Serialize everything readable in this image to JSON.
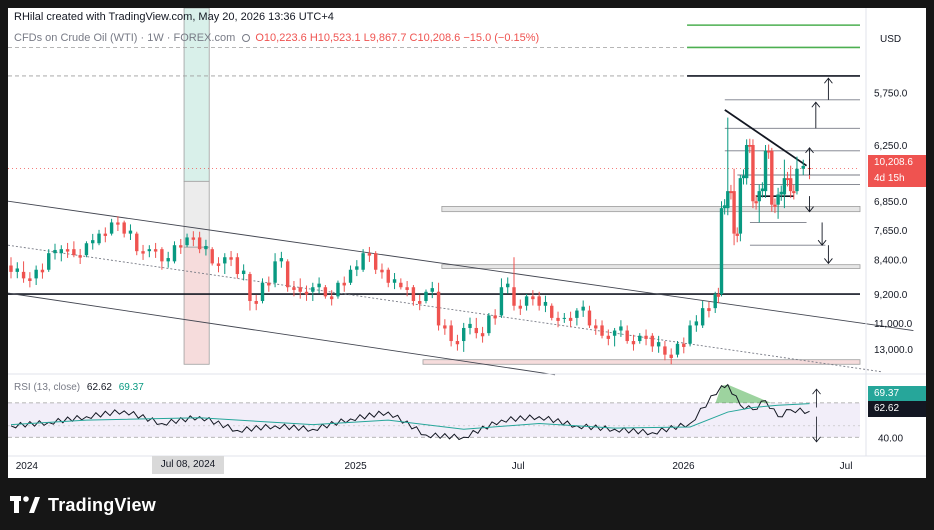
{
  "header": {
    "attribution": "RHilal created with TradingView.com, May 20, 2026 13:36 UTC+4",
    "symbol": "CFDs on Crude Oil (WTI) · 1W · FOREX.com",
    "open": "O10,223.6",
    "high": "H10,523.1",
    "low": "L9,867.7",
    "close": "C10,208.6",
    "change": "−15.0 (−0.15%)",
    "currency": "USD"
  },
  "price_labels": {
    "last_price": "10,208.6",
    "countdown": "4d 15h"
  },
  "rsi": {
    "label": "RSI (13, close)",
    "value": "62.62",
    "signal": "69.37",
    "level_label": "40.00"
  },
  "x_axis": {
    "labels": [
      "2024",
      "Jul 08, 2024",
      "2025",
      "Jul",
      "2026",
      "Jul"
    ],
    "highlighted": "Jul 08, 2024"
  },
  "y_axis": {
    "ticks": [
      "13,000.0",
      "11,000.0",
      "9,200.0",
      "8,400.0",
      "7,650.0",
      "6,850.0",
      "6,250.0",
      "5,750.0"
    ]
  },
  "brand": {
    "name": "TradingView"
  },
  "colors": {
    "up": "#089981",
    "down": "#ef5350",
    "rsi_line": "#131722",
    "rsi_signal": "#26a69a",
    "rsi_band": "#7e57c2"
  },
  "chart_data": [
    {
      "type": "candlestick",
      "title": "CFDs on Crude Oil (WTI) · 1W · FOREX.com",
      "ylabel": "USD",
      "x_range": [
        "2023-12-11",
        "2026-09-28"
      ],
      "ylim": [
        5450,
        17000
      ],
      "y_scale": "log",
      "y_ticks": [
        5750,
        6250,
        6850,
        7650,
        8400,
        9200,
        11000,
        13000
      ],
      "last_close": 10208.6,
      "levels": [
        {
          "price": 16100,
          "color": "#4caf50",
          "x_from": "2026-01-05"
        },
        {
          "price": 15000,
          "color": "#4caf50",
          "x_from": "2026-01-05",
          "style": "dashed",
          "x_start": "2023-12-11"
        },
        {
          "price": 13700,
          "color": "#131722",
          "x_from": "2026-01-05",
          "style": "dashed",
          "x_start": "2023-12-11"
        },
        {
          "price": 12700,
          "color": "#787b86",
          "x_from": "2026-02-16"
        },
        {
          "price": 11600,
          "color": "#787b86",
          "x_from": "2026-02-16"
        },
        {
          "price": 10800,
          "color": "#787b86",
          "x_from": "2026-02-16"
        },
        {
          "price": 10000,
          "color": "#787b86",
          "x_from": "2026-03-02"
        },
        {
          "price": 9700,
          "color": "#787b86",
          "x_from": "2026-03-16"
        },
        {
          "price": 9350,
          "color": "#131722",
          "x_from": "2026-03-23",
          "x_to": "2026-05-04"
        },
        {
          "price": 8600,
          "color": "#787b86",
          "x_from": "2026-03-16",
          "x_to": "2026-05-18"
        },
        {
          "price": 8000,
          "color": "#787b86",
          "x_from": "2026-03-16",
          "x_to": "2026-06-08"
        },
        {
          "price": 6850,
          "color": "#131722",
          "x_from": "2023-12-11"
        }
      ],
      "zones": [
        {
          "x_from": "2024-06-24",
          "x_to": "2024-07-22",
          "top": 17000,
          "bottom": 9800,
          "color": "#d9f0ea"
        },
        {
          "x_from": "2024-06-24",
          "x_to": "2024-07-22",
          "top": 9800,
          "bottom": 7950,
          "color": "#ececec"
        },
        {
          "x_from": "2024-06-24",
          "x_to": "2024-07-22",
          "top": 7950,
          "bottom": 5480,
          "color": "#f6dcdc"
        },
        {
          "x_from": "2025-04-07",
          "x_to": "2026-08-10",
          "top": 9050,
          "bottom": 8900,
          "color": "#e6e6e6"
        },
        {
          "x_from": "2025-04-07",
          "x_to": "2026-08-10",
          "top": 7520,
          "bottom": 7430,
          "color": "#e6e6e6"
        },
        {
          "x_from": "2025-03-17",
          "x_to": "2026-08-10",
          "top": 5560,
          "bottom": 5480,
          "color": "#f6dcdc"
        }
      ],
      "trendlines": [
        {
          "from": [
            "2023-12-11",
            9200
          ],
          "to": [
            "2026-09-14",
            6100
          ],
          "color": "#434651"
        },
        {
          "from": [
            "2023-12-11",
            6870
          ],
          "to": [
            "2025-08-11",
            5300
          ],
          "color": "#434651"
        },
        {
          "from": [
            "2023-12-11",
            8000
          ],
          "to": [
            "2026-08-10",
            5350
          ],
          "color": "#787b86",
          "style": "dotted"
        },
        {
          "from": [
            "2026-02-16",
            12300
          ],
          "to": [
            "2026-05-18",
            10300
          ],
          "color": "#131722"
        }
      ],
      "arrows": [
        {
          "x": "2026-05-18",
          "from": 10000,
          "to": 10900,
          "direction": "up"
        },
        {
          "x": "2026-05-25",
          "from": 11600,
          "to": 12600,
          "direction": "up"
        },
        {
          "x": "2026-06-08",
          "from": 12700,
          "to": 13600,
          "direction": "up"
        },
        {
          "x": "2026-05-18",
          "from": 9350,
          "to": 8900,
          "direction": "down"
        },
        {
          "x": "2026-06-01",
          "from": 8600,
          "to": 8000,
          "direction": "down"
        },
        {
          "x": "2026-06-08",
          "from": 8000,
          "to": 7550,
          "direction": "down"
        }
      ],
      "candles_keys": [
        "date",
        "open",
        "high",
        "low",
        "close"
      ],
      "candles": [
        [
          "2023-12-11",
          7500,
          7700,
          7200,
          7350
        ],
        [
          "2023-12-25",
          7350,
          7600,
          7100,
          7200
        ],
        [
          "2024-01-08",
          7200,
          7500,
          7050,
          7400
        ],
        [
          "2024-01-22",
          7400,
          7900,
          7350,
          7800
        ],
        [
          "2024-02-05",
          7800,
          8000,
          7600,
          7900
        ],
        [
          "2024-02-19",
          7900,
          8100,
          7700,
          7750
        ],
        [
          "2024-03-04",
          7750,
          8100,
          7700,
          8050
        ],
        [
          "2024-03-18",
          8050,
          8400,
          8000,
          8300
        ],
        [
          "2024-04-01",
          8300,
          8700,
          8250,
          8600
        ],
        [
          "2024-04-15",
          8600,
          8650,
          8200,
          8300
        ],
        [
          "2024-04-29",
          8300,
          8350,
          7750,
          7850
        ],
        [
          "2024-05-13",
          7850,
          8000,
          7700,
          7900
        ],
        [
          "2024-05-27",
          7900,
          7950,
          7400,
          7600
        ],
        [
          "2024-06-10",
          7600,
          8100,
          7550,
          8000
        ],
        [
          "2024-06-24",
          8000,
          8300,
          7950,
          8200
        ],
        [
          "2024-07-08",
          8200,
          8350,
          7800,
          7900
        ],
        [
          "2024-07-22",
          7900,
          7950,
          7500,
          7550
        ],
        [
          "2024-08-05",
          7550,
          7800,
          7300,
          7700
        ],
        [
          "2024-08-19",
          7700,
          7800,
          7200,
          7300
        ],
        [
          "2024-09-02",
          7300,
          7350,
          6500,
          6700
        ],
        [
          "2024-09-16",
          6700,
          7200,
          6650,
          7100
        ],
        [
          "2024-09-30",
          7100,
          7800,
          7000,
          7600
        ],
        [
          "2024-10-14",
          7600,
          7650,
          6900,
          7000
        ],
        [
          "2024-10-28",
          7000,
          7200,
          6750,
          6900
        ],
        [
          "2024-11-11",
          6900,
          7100,
          6700,
          7000
        ],
        [
          "2024-11-25",
          7000,
          7050,
          6750,
          6800
        ],
        [
          "2024-12-09",
          6800,
          7150,
          6750,
          7100
        ],
        [
          "2024-12-23",
          7100,
          7500,
          7050,
          7400
        ],
        [
          "2025-01-06",
          7400,
          7900,
          7350,
          7800
        ],
        [
          "2025-01-20",
          7800,
          7850,
          7300,
          7400
        ],
        [
          "2025-02-03",
          7400,
          7450,
          7000,
          7100
        ],
        [
          "2025-02-17",
          7100,
          7200,
          6950,
          7000
        ],
        [
          "2025-03-03",
          7000,
          7050,
          6600,
          6700
        ],
        [
          "2025-03-17",
          6700,
          6950,
          6650,
          6900
        ],
        [
          "2025-03-31",
          6900,
          7100,
          6100,
          6200
        ],
        [
          "2025-04-14",
          6200,
          6300,
          5800,
          5900
        ],
        [
          "2025-04-28",
          5900,
          6250,
          5700,
          6150
        ],
        [
          "2025-05-12",
          6150,
          6350,
          5950,
          6050
        ],
        [
          "2025-05-26",
          6050,
          6450,
          6000,
          6400
        ],
        [
          "2025-06-09",
          6400,
          7200,
          6350,
          7000
        ],
        [
          "2025-06-23",
          7000,
          7700,
          6500,
          6600
        ],
        [
          "2025-07-07",
          6600,
          6850,
          6500,
          6800
        ],
        [
          "2025-07-21",
          6800,
          6900,
          6500,
          6600
        ],
        [
          "2025-08-04",
          6600,
          6650,
          6300,
          6350
        ],
        [
          "2025-08-18",
          6350,
          6450,
          6250,
          6350
        ],
        [
          "2025-09-01",
          6350,
          6550,
          6200,
          6500
        ],
        [
          "2025-09-15",
          6500,
          6600,
          6150,
          6200
        ],
        [
          "2025-09-29",
          6200,
          6300,
          5950,
          6000
        ],
        [
          "2025-10-13",
          6000,
          6150,
          5800,
          6100
        ],
        [
          "2025-10-27",
          6100,
          6200,
          5850,
          5900
        ],
        [
          "2025-11-10",
          5900,
          6050,
          5850,
          6000
        ],
        [
          "2025-11-24",
          6000,
          6050,
          5700,
          5800
        ],
        [
          "2025-12-08",
          5800,
          5900,
          5550,
          5650
        ],
        [
          "2025-12-22",
          5650,
          5900,
          5600,
          5850
        ],
        [
          "2026-01-05",
          5850,
          6300,
          5800,
          6200
        ],
        [
          "2026-01-19",
          6200,
          6700,
          6150,
          6550
        ],
        [
          "2026-02-02",
          6550,
          6900,
          6450,
          6850
        ],
        [
          "2026-02-09",
          6850,
          9200,
          6800,
          9000
        ],
        [
          "2026-02-16",
          9000,
          12000,
          8800,
          9500
        ],
        [
          "2026-02-23",
          9500,
          10200,
          8000,
          8300
        ],
        [
          "2026-03-02",
          8300,
          10000,
          8100,
          9900
        ],
        [
          "2026-03-09",
          9900,
          11200,
          9700,
          11000
        ],
        [
          "2026-03-16",
          11000,
          11200,
          9000,
          9200
        ],
        [
          "2026-03-23",
          9200,
          9700,
          8600,
          9500
        ],
        [
          "2026-03-30",
          9500,
          11000,
          9300,
          10800
        ],
        [
          "2026-04-06",
          10800,
          10900,
          8900,
          9100
        ],
        [
          "2026-04-13",
          9100,
          9600,
          8700,
          9400
        ],
        [
          "2026-04-20",
          9400,
          10500,
          9000,
          9900
        ],
        [
          "2026-04-27",
          9900,
          10300,
          9300,
          9500
        ],
        [
          "2026-05-04",
          9500,
          10600,
          9400,
          10200
        ],
        [
          "2026-05-18",
          10223.6,
          10523.1,
          9867.7,
          10208.6
        ]
      ]
    },
    {
      "type": "line",
      "title": "RSI (13, close)",
      "x_range": [
        "2023-12-11",
        "2026-09-28"
      ],
      "ylim": [
        28,
        90
      ],
      "y_ticks": [
        40
      ],
      "band": [
        40,
        70
      ],
      "overbought_area_color": "#4caf50",
      "series": [
        {
          "name": "RSI",
          "color": "#131722",
          "x": [
            "2023-12-11",
            "2024-01-22",
            "2024-03-04",
            "2024-04-15",
            "2024-05-27",
            "2024-07-08",
            "2024-08-19",
            "2024-09-30",
            "2024-11-11",
            "2024-12-23",
            "2025-02-03",
            "2025-03-17",
            "2025-04-28",
            "2025-06-09",
            "2025-07-21",
            "2025-09-01",
            "2025-10-13",
            "2025-11-24",
            "2026-01-05",
            "2026-02-09",
            "2026-02-16",
            "2026-03-02",
            "2026-03-16",
            "2026-03-30",
            "2026-04-13",
            "2026-04-27",
            "2026-05-18"
          ],
          "values": [
            50,
            53,
            58,
            63,
            52,
            58,
            46,
            50,
            47,
            56,
            62,
            42,
            40,
            55,
            58,
            50,
            47,
            44,
            52,
            85,
            86,
            68,
            64,
            72,
            58,
            64,
            62.62
          ]
        },
        {
          "name": "Signal",
          "color": "#26a69a",
          "x": [
            "2023-12-11",
            "2024-03-04",
            "2024-07-08",
            "2024-11-11",
            "2025-02-03",
            "2025-04-28",
            "2025-07-21",
            "2025-10-13",
            "2026-01-05",
            "2026-02-16",
            "2026-03-16",
            "2026-04-13",
            "2026-05-18"
          ],
          "values": [
            51,
            55,
            57,
            51,
            55,
            47,
            52,
            48,
            49,
            62,
            66,
            68,
            69.37
          ]
        }
      ]
    }
  ]
}
